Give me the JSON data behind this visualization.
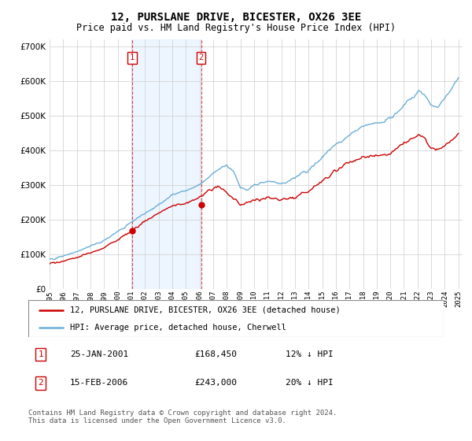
{
  "title": "12, PURSLANE DRIVE, BICESTER, OX26 3EE",
  "subtitle": "Price paid vs. HM Land Registry's House Price Index (HPI)",
  "footer": "Contains HM Land Registry data © Crown copyright and database right 2024.\nThis data is licensed under the Open Government Licence v3.0.",
  "legend_line1": "12, PURSLANE DRIVE, BICESTER, OX26 3EE (detached house)",
  "legend_line2": "HPI: Average price, detached house, Cherwell",
  "annotation1": {
    "label": "1",
    "date": "25-JAN-2001",
    "price": "£168,450",
    "pct": "12% ↓ HPI"
  },
  "annotation2": {
    "label": "2",
    "date": "15-FEB-2006",
    "price": "£243,000",
    "pct": "20% ↓ HPI"
  },
  "hpi_color": "#6baed6",
  "price_color": "#cc0000",
  "annotation_color": "#cc0000",
  "background_shade": "#ddeeff",
  "ylim": [
    0,
    720000
  ],
  "yticks": [
    0,
    100000,
    200000,
    300000,
    400000,
    500000,
    600000,
    700000
  ],
  "start_year": 1995,
  "end_year": 2025,
  "sale1_year": 2001.069,
  "sale1_price": 168450,
  "sale2_year": 2006.122,
  "sale2_price": 243000
}
